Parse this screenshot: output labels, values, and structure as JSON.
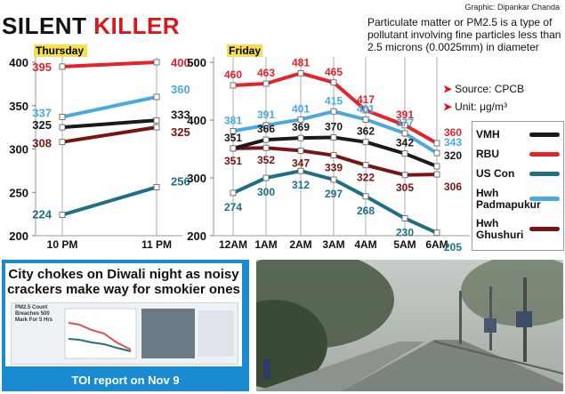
{
  "credit": "Graphic: Dipankar Chanda",
  "headline": {
    "word1": "SILENT",
    "word2": "KILLER"
  },
  "info": "Particulate matter or PM2.5 is a type of pollutant involving fine particles less than 2.5 microns (0.0025mm) in diameter",
  "source": "Source: CPCB",
  "unit": "Unit: μg/m³",
  "colors": {
    "VMH": "#1a1a1a",
    "RBU": "#e4232a",
    "US Con": "#1f6f87",
    "Hwh Padmapukur": "#4aa9e0",
    "Hwh Ghushuri": "#7a1414",
    "panel_label_bg": "#f4e04d"
  },
  "legend": [
    {
      "label": "VMH",
      "key": "VMH"
    },
    {
      "label": "RBU",
      "key": "RBU"
    },
    {
      "label": "US Con",
      "key": "US Con"
    },
    {
      "label": "Hwh Padmapukur",
      "key": "Hwh Padmapukur"
    },
    {
      "label": "Hwh Ghushuri",
      "key": "Hwh Ghushuri"
    }
  ],
  "chart_data": [
    {
      "type": "line",
      "title": "Thursday",
      "categories": [
        "10 PM",
        "11 PM"
      ],
      "ylim": [
        200,
        400
      ],
      "yticks": [
        200,
        250,
        300,
        350,
        400
      ],
      "series": [
        {
          "name": "RBU",
          "values": [
            395,
            400
          ]
        },
        {
          "name": "Hwh Padmapukur",
          "values": [
            337,
            360
          ]
        },
        {
          "name": "VMH",
          "values": [
            325,
            333
          ]
        },
        {
          "name": "Hwh Ghushuri",
          "values": [
            308,
            325
          ]
        },
        {
          "name": "US Con",
          "values": [
            224,
            256
          ]
        }
      ]
    },
    {
      "type": "line",
      "title": "Friday",
      "categories": [
        "12AM",
        "1AM",
        "2AM",
        "3AM",
        "4AM",
        "5AM",
        "6AM"
      ],
      "ylim": [
        200,
        500
      ],
      "yticks": [
        200,
        300,
        400,
        500
      ],
      "series": [
        {
          "name": "RBU",
          "values": [
            460,
            463,
            481,
            465,
            417,
            391,
            360
          ]
        },
        {
          "name": "Hwh Padmapukur",
          "values": [
            381,
            391,
            401,
            415,
            401,
            377,
            343
          ]
        },
        {
          "name": "VMH",
          "values": [
            351,
            366,
            369,
            370,
            362,
            342,
            320
          ]
        },
        {
          "name": "Hwh Ghushuri",
          "values": [
            351,
            352,
            347,
            339,
            322,
            305,
            306
          ]
        },
        {
          "name": "US Con",
          "values": [
            274,
            300,
            312,
            297,
            268,
            230,
            205
          ]
        }
      ]
    }
  ],
  "toi": {
    "title": "City chokes on Diwali night as noisy crackers make way for smokier ones",
    "mini_text": "PM2.5 Count Breaches 500 Mark For 5 Hrs",
    "caption": "TOI report on Nov 9"
  }
}
